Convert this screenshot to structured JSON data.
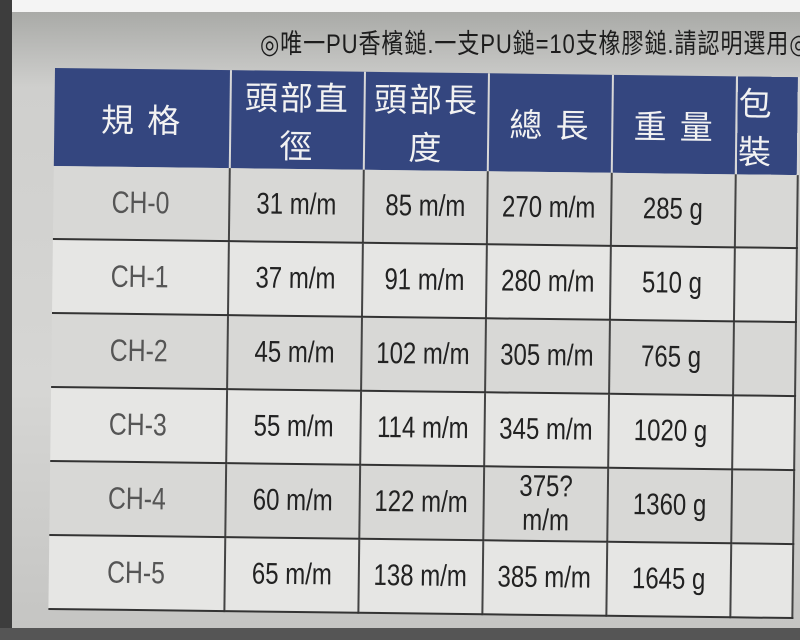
{
  "notice": "◎唯一PU香檳鎚.一支PU鎚=10支橡膠鎚.請認明選用◎",
  "table": {
    "headers": [
      "規 格",
      "頭部直徑",
      "頭部長度",
      "總 長",
      "重 量",
      "包裝"
    ],
    "rows": [
      [
        "CH-0",
        "31 m/m",
        "85 m/m",
        "270 m/m",
        "285 g",
        ""
      ],
      [
        "CH-1",
        "37 m/m",
        "91 m/m",
        "280 m/m",
        "510 g",
        ""
      ],
      [
        "CH-2",
        "45 m/m",
        "102 m/m",
        "305 m/m",
        "765 g",
        ""
      ],
      [
        "CH-3",
        "55 m/m",
        "114 m/m",
        "345 m/m",
        "1020 g",
        ""
      ],
      [
        "CH-4",
        "60 m/m",
        "122 m/m",
        "375? m/m",
        "1360 g",
        ""
      ],
      [
        "CH-5",
        "65 m/m",
        "138 m/m",
        "385 m/m",
        "1645 g",
        ""
      ]
    ]
  },
  "colors": {
    "header_bg": "#34467f"
  }
}
